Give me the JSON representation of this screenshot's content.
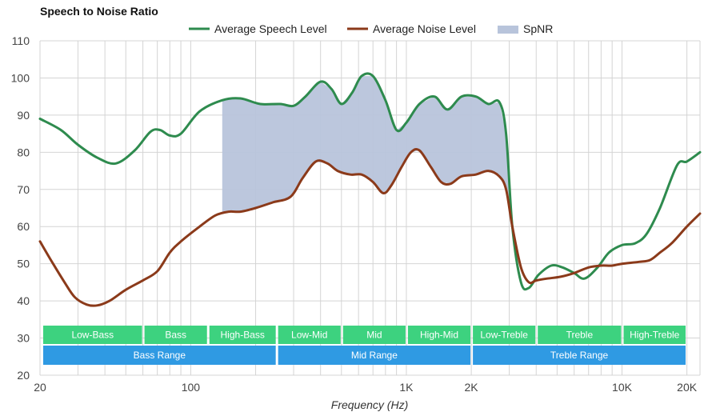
{
  "chart_data": {
    "type": "line",
    "title": "Speech to Noise Ratio",
    "xlabel": "Frequency (Hz)",
    "ylabel": "",
    "x_scale": "log",
    "xlim": [
      20,
      23000
    ],
    "ylim": [
      20,
      110
    ],
    "y_ticks": [
      20,
      30,
      40,
      50,
      60,
      70,
      80,
      90,
      100,
      110
    ],
    "x_ticks": [
      {
        "value": 20,
        "label": "20"
      },
      {
        "value": 100,
        "label": "100"
      },
      {
        "value": 1000,
        "label": "1K"
      },
      {
        "value": 2000,
        "label": "2K"
      },
      {
        "value": 10000,
        "label": "10K"
      },
      {
        "value": 20000,
        "label": "20K"
      }
    ],
    "grid": true,
    "legend_position": "top-center",
    "series": [
      {
        "name": "Average Speech Level",
        "color": "#2e8b4e",
        "points": [
          [
            20,
            89
          ],
          [
            25,
            86
          ],
          [
            30,
            82
          ],
          [
            37,
            78.5
          ],
          [
            45,
            77
          ],
          [
            55,
            80.5
          ],
          [
            65,
            85.5
          ],
          [
            72,
            86
          ],
          [
            80,
            84.5
          ],
          [
            90,
            85
          ],
          [
            110,
            91
          ],
          [
            140,
            94
          ],
          [
            170,
            94.5
          ],
          [
            210,
            93
          ],
          [
            260,
            93
          ],
          [
            300,
            92.5
          ],
          [
            340,
            95
          ],
          [
            400,
            99
          ],
          [
            450,
            97
          ],
          [
            500,
            93
          ],
          [
            560,
            96
          ],
          [
            620,
            100.5
          ],
          [
            700,
            100.5
          ],
          [
            800,
            94
          ],
          [
            900,
            86
          ],
          [
            1000,
            88
          ],
          [
            1150,
            93
          ],
          [
            1350,
            95
          ],
          [
            1550,
            91.5
          ],
          [
            1800,
            95
          ],
          [
            2100,
            95
          ],
          [
            2400,
            93
          ],
          [
            2700,
            93.5
          ],
          [
            2900,
            85
          ],
          [
            3100,
            60
          ],
          [
            3400,
            45
          ],
          [
            3700,
            43.5
          ],
          [
            4100,
            47
          ],
          [
            4700,
            49.5
          ],
          [
            5300,
            49
          ],
          [
            6000,
            47.5
          ],
          [
            6700,
            46
          ],
          [
            7700,
            49
          ],
          [
            8700,
            53
          ],
          [
            10000,
            55
          ],
          [
            11500,
            55.5
          ],
          [
            13000,
            58
          ],
          [
            15000,
            65
          ],
          [
            18000,
            76.5
          ],
          [
            20000,
            77.5
          ],
          [
            23000,
            80
          ]
        ]
      },
      {
        "name": "Average Noise Level",
        "color": "#8b3a1a",
        "points": [
          [
            20,
            56
          ],
          [
            23,
            50
          ],
          [
            26,
            45
          ],
          [
            29,
            41
          ],
          [
            33,
            39
          ],
          [
            37,
            38.8
          ],
          [
            42,
            40
          ],
          [
            50,
            43
          ],
          [
            60,
            45.5
          ],
          [
            70,
            48
          ],
          [
            80,
            53
          ],
          [
            90,
            56
          ],
          [
            110,
            60
          ],
          [
            130,
            63
          ],
          [
            150,
            64
          ],
          [
            170,
            64
          ],
          [
            200,
            65
          ],
          [
            240,
            66.5
          ],
          [
            290,
            68
          ],
          [
            330,
            73
          ],
          [
            380,
            77.5
          ],
          [
            430,
            77
          ],
          [
            480,
            75
          ],
          [
            550,
            74
          ],
          [
            620,
            74
          ],
          [
            700,
            72
          ],
          [
            780,
            69
          ],
          [
            850,
            71
          ],
          [
            950,
            76
          ],
          [
            1050,
            80
          ],
          [
            1150,
            80.5
          ],
          [
            1300,
            76
          ],
          [
            1450,
            72
          ],
          [
            1600,
            71.5
          ],
          [
            1800,
            73.5
          ],
          [
            2100,
            74
          ],
          [
            2400,
            75
          ],
          [
            2700,
            73.5
          ],
          [
            2900,
            70
          ],
          [
            3100,
            60
          ],
          [
            3400,
            49
          ],
          [
            3700,
            45
          ],
          [
            4000,
            45.5
          ],
          [
            4500,
            46
          ],
          [
            5200,
            46.5
          ],
          [
            6000,
            47.5
          ],
          [
            7000,
            49
          ],
          [
            8000,
            49.5
          ],
          [
            9000,
            49.5
          ],
          [
            10000,
            50
          ],
          [
            12000,
            50.5
          ],
          [
            13500,
            51
          ],
          [
            15000,
            53
          ],
          [
            17000,
            55.5
          ],
          [
            20000,
            60
          ],
          [
            23000,
            63.5
          ]
        ]
      }
    ],
    "fill_series": {
      "name": "SpNR",
      "color": "#b8c4db",
      "x_range": [
        140,
        3250
      ]
    },
    "frequency_bands": [
      {
        "label": "Low-Bass",
        "start": 20,
        "end": 60,
        "row": 1
      },
      {
        "label": "Bass",
        "start": 60,
        "end": 120,
        "row": 1
      },
      {
        "label": "High-Bass",
        "start": 120,
        "end": 250,
        "row": 1
      },
      {
        "label": "Low-Mid",
        "start": 250,
        "end": 500,
        "row": 1
      },
      {
        "label": "Mid",
        "start": 500,
        "end": 1000,
        "row": 1
      },
      {
        "label": "High-Mid",
        "start": 1000,
        "end": 2000,
        "row": 1
      },
      {
        "label": "Low-Treble",
        "start": 2000,
        "end": 4000,
        "row": 1
      },
      {
        "label": "Treble",
        "start": 4000,
        "end": 10000,
        "row": 1
      },
      {
        "label": "High-Treble",
        "start": 10000,
        "end": 20000,
        "row": 1
      },
      {
        "label": "Bass Range",
        "start": 20,
        "end": 250,
        "row": 2
      },
      {
        "label": "Mid Range",
        "start": 250,
        "end": 2000,
        "row": 2
      },
      {
        "label": "Treble Range",
        "start": 2000,
        "end": 20000,
        "row": 2
      }
    ],
    "band_colors": {
      "row1": "#3dd27f",
      "row2": "#2f9ae3"
    }
  }
}
